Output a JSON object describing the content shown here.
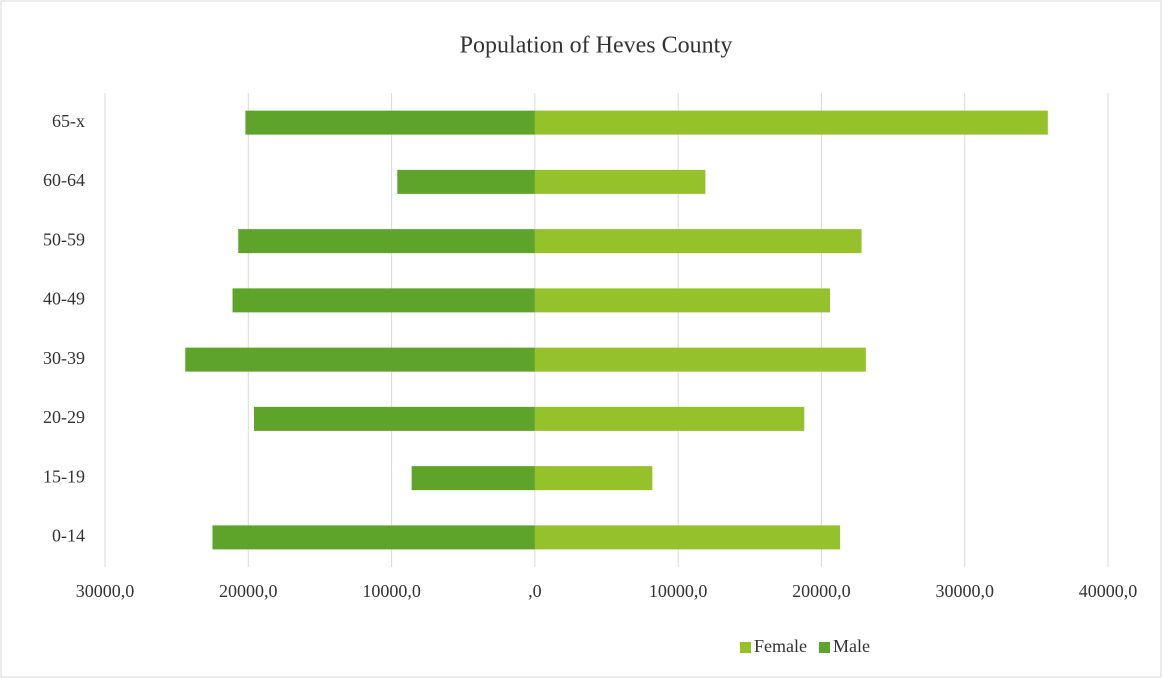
{
  "chart_data": {
    "type": "bar",
    "orientation": "horizontal",
    "stacked": true,
    "title": "Population  of Heves County",
    "categories": [
      "0-14",
      "15-19",
      "20-29",
      "30-39",
      "40-49",
      "50-59",
      "60-64",
      "65-x"
    ],
    "series": [
      {
        "name": "Female",
        "color": "#95c12b",
        "values": [
          21300,
          8200,
          18800,
          23100,
          20600,
          22800,
          11900,
          35800
        ]
      },
      {
        "name": "Male",
        "color": "#5ea32a",
        "values": [
          -22500,
          -8600,
          -19600,
          -24400,
          -21100,
          -20700,
          -9600,
          -20200
        ]
      }
    ],
    "xlim": [
      -30000,
      40000
    ],
    "xticks": [
      {
        "value": -30000,
        "label": "30000,0"
      },
      {
        "value": -20000,
        "label": "20000,0"
      },
      {
        "value": -10000,
        "label": "10000,0"
      },
      {
        "value": 0,
        "label": ",0"
      },
      {
        "value": 10000,
        "label": "10000,0"
      },
      {
        "value": 20000,
        "label": "20000,0"
      },
      {
        "value": 30000,
        "label": "30000,0"
      },
      {
        "value": 40000,
        "label": "40000,0"
      }
    ],
    "grid": true,
    "legend": "bottom"
  }
}
